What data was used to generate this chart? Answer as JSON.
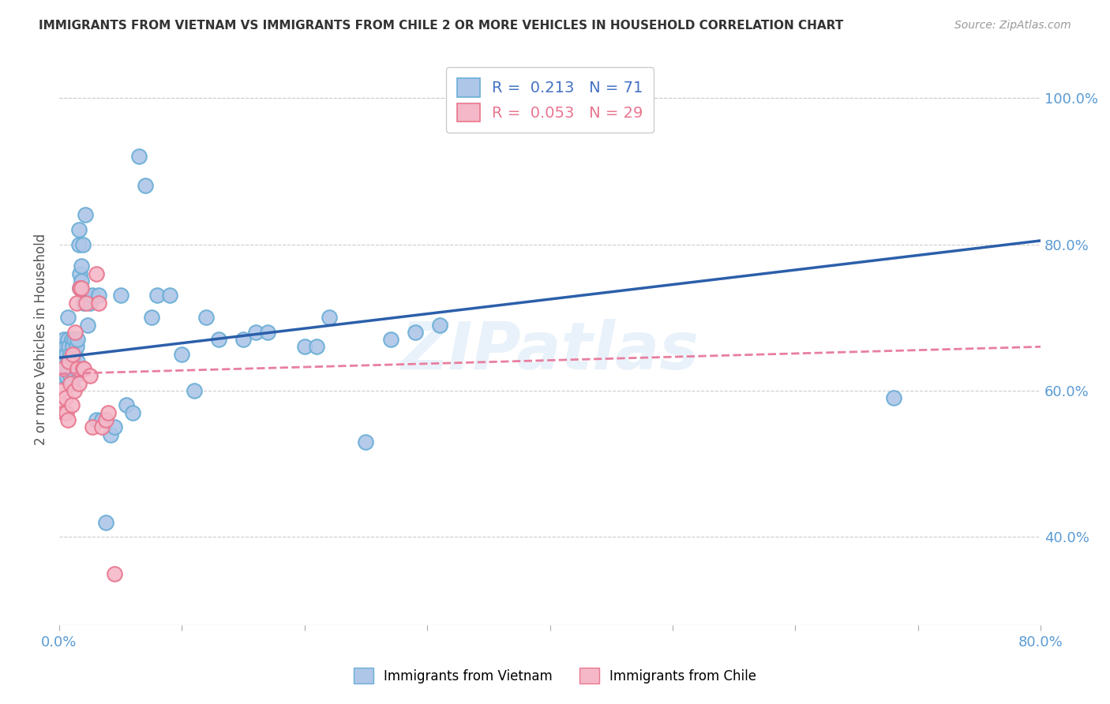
{
  "title": "IMMIGRANTS FROM VIETNAM VS IMMIGRANTS FROM CHILE 2 OR MORE VEHICLES IN HOUSEHOLD CORRELATION CHART",
  "source": "Source: ZipAtlas.com",
  "ylabel": "2 or more Vehicles in Household",
  "xlim": [
    0.0,
    0.8
  ],
  "ylim": [
    0.28,
    1.06
  ],
  "ytick_right_labels": [
    "100.0%",
    "80.0%",
    "60.0%",
    "40.0%"
  ],
  "ytick_right_values": [
    1.0,
    0.8,
    0.6,
    0.4
  ],
  "legend_label1": "Immigrants from Vietnam",
  "legend_label2": "Immigrants from Chile",
  "R_vietnam": 0.213,
  "N_vietnam": 71,
  "R_chile": 0.053,
  "N_chile": 29,
  "background_color": "#ffffff",
  "grid_color": "#cccccc",
  "vietnam_color": "#aec6e8",
  "vietnam_edge_color": "#6aaed6",
  "chile_color": "#f4b8c8",
  "chile_edge_color": "#e8768f",
  "vietnam_line_color": "#2b5faa",
  "chile_line_color": "#e87fa0",
  "watermark": "ZIPatlas",
  "vietnam_x": [
    0.001,
    0.002,
    0.003,
    0.004,
    0.004,
    0.005,
    0.005,
    0.006,
    0.006,
    0.007,
    0.007,
    0.007,
    0.008,
    0.008,
    0.009,
    0.009,
    0.01,
    0.01,
    0.01,
    0.011,
    0.011,
    0.012,
    0.012,
    0.013,
    0.013,
    0.014,
    0.014,
    0.015,
    0.015,
    0.016,
    0.016,
    0.017,
    0.017,
    0.018,
    0.018,
    0.019,
    0.02,
    0.021,
    0.022,
    0.023,
    0.025,
    0.027,
    0.03,
    0.032,
    0.035,
    0.038,
    0.042,
    0.045,
    0.05,
    0.055,
    0.06,
    0.065,
    0.07,
    0.075,
    0.08,
    0.09,
    0.1,
    0.11,
    0.12,
    0.13,
    0.15,
    0.16,
    0.17,
    0.2,
    0.21,
    0.22,
    0.25,
    0.27,
    0.29,
    0.31,
    0.68
  ],
  "vietnam_y": [
    0.63,
    0.65,
    0.62,
    0.64,
    0.67,
    0.63,
    0.66,
    0.62,
    0.65,
    0.64,
    0.67,
    0.7,
    0.63,
    0.66,
    0.62,
    0.65,
    0.61,
    0.64,
    0.67,
    0.63,
    0.66,
    0.63,
    0.67,
    0.62,
    0.65,
    0.63,
    0.66,
    0.64,
    0.67,
    0.8,
    0.82,
    0.74,
    0.76,
    0.75,
    0.77,
    0.8,
    0.72,
    0.84,
    0.73,
    0.69,
    0.72,
    0.73,
    0.56,
    0.73,
    0.56,
    0.42,
    0.54,
    0.55,
    0.73,
    0.58,
    0.57,
    0.92,
    0.88,
    0.7,
    0.73,
    0.73,
    0.65,
    0.6,
    0.7,
    0.67,
    0.67,
    0.68,
    0.68,
    0.66,
    0.66,
    0.7,
    0.53,
    0.67,
    0.68,
    0.69,
    0.59
  ],
  "chile_x": [
    0.001,
    0.002,
    0.003,
    0.004,
    0.005,
    0.006,
    0.007,
    0.008,
    0.009,
    0.01,
    0.011,
    0.012,
    0.013,
    0.014,
    0.015,
    0.016,
    0.017,
    0.018,
    0.019,
    0.02,
    0.022,
    0.025,
    0.027,
    0.03,
    0.032,
    0.035,
    0.038,
    0.04,
    0.045
  ],
  "chile_y": [
    0.6,
    0.58,
    0.63,
    0.57,
    0.59,
    0.57,
    0.56,
    0.64,
    0.61,
    0.58,
    0.65,
    0.6,
    0.68,
    0.72,
    0.63,
    0.61,
    0.74,
    0.74,
    0.63,
    0.63,
    0.72,
    0.62,
    0.55,
    0.76,
    0.72,
    0.55,
    0.56,
    0.57,
    0.35
  ],
  "viet_line_x0": 0.0,
  "viet_line_x1": 0.8,
  "viet_line_y0": 0.645,
  "viet_line_y1": 0.805,
  "chile_line_x0": 0.0,
  "chile_line_x1": 0.8,
  "chile_line_y0": 0.623,
  "chile_line_y1": 0.66,
  "figsize": [
    14.06,
    8.92
  ],
  "dpi": 100
}
